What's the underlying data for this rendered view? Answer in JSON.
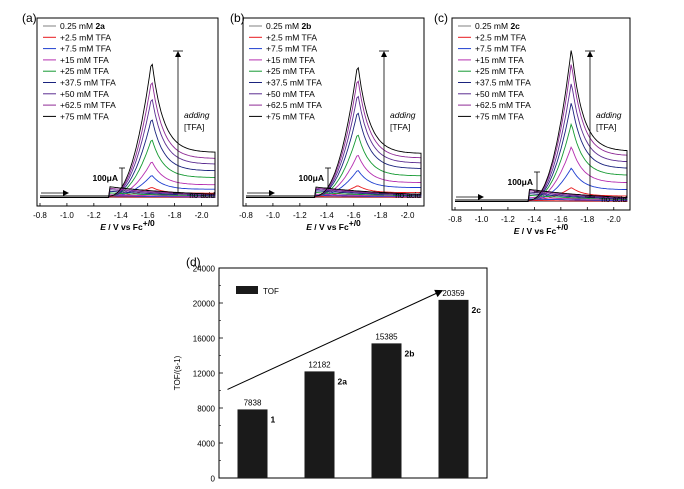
{
  "panel_labels": [
    "(a)",
    "(b)",
    "(c)",
    "(d)"
  ],
  "cv_panels": [
    {
      "label": "(a)",
      "compound": "2a",
      "legend": [
        "0.25 mM 2a",
        "+2.5 mM TFA",
        "+7.5 mM TFA",
        "+15 mM TFA",
        "+25 mM TFA",
        "+37.5 mM TFA",
        "+50 mM TFA",
        "+62.5 mM TFA",
        "+75 mM TFA"
      ],
      "xticks": [
        "-0.8",
        "-1.0",
        "-1.2",
        "-1.4",
        "-1.6",
        "-1.8",
        "-2.0"
      ],
      "xlabel_italic": "E",
      "xlabel_rest": " / V vs Fc",
      "xlabel_sup": "+/0",
      "scalebar": "100μA",
      "adding": "adding",
      "tfa": "[TFA]",
      "no_acid": "no acid"
    },
    {
      "label": "(b)",
      "compound": "2b",
      "legend": [
        "0.25 mM 2b",
        "+2.5 mM TFA",
        "+7.5 mM TFA",
        "+15 mM TFA",
        "+25 mM TFA",
        "+37.5 mM TFA",
        "+50 mM TFA",
        "+62.5 mM TFA",
        "+75 mM TFA"
      ],
      "xticks": [
        "-0.8",
        "-1.0",
        "-1.2",
        "-1.4",
        "-1.6",
        "-1.8",
        "-2.0"
      ],
      "xlabel_italic": "E",
      "xlabel_rest": " / V vs Fc",
      "xlabel_sup": "+/0",
      "scalebar": "100μA",
      "adding": "adding",
      "tfa": "[TFA]",
      "no_acid": "no acid"
    },
    {
      "label": "(c)",
      "compound": "2c",
      "legend": [
        "0.25 mM 2c",
        "+2.5 mM TFA",
        "+7.5 mM TFA",
        "+15 mM TFA",
        "+25 mM TFA",
        "+37.5 mM TFA",
        "+50 mM TFA",
        "+62.5 mM TFA",
        "+75 mM TFA"
      ],
      "xticks": [
        "-0.8",
        "-1.0",
        "-1.2",
        "-1.4",
        "-1.6",
        "-1.8",
        "-2.0"
      ],
      "xlabel_italic": "E",
      "xlabel_rest": " / V vs Fc",
      "xlabel_sup": "+/0",
      "scalebar": "100μA",
      "adding": "adding",
      "tfa": "[TFA]",
      "no_acid": "no acid"
    }
  ],
  "series_colors": [
    "#808080",
    "#e8191c",
    "#1f3fd0",
    "#b52fb0",
    "#159a32",
    "#1a237e",
    "#5b2d91",
    "#8e2b96",
    "#000000"
  ],
  "chart_data": [
    {
      "type": "line",
      "panel": "(a)",
      "xlabel": "E / V vs Fc+/0",
      "x_range": [
        -0.8,
        -2.1
      ],
      "x_axis_reversed": true,
      "y_scale_bar": "100μA",
      "peak_potential_approx": -1.63,
      "series": [
        {
          "name": "0.25 mM 2a",
          "peak_current_uA": 5
        },
        {
          "name": "+2.5 mM TFA",
          "peak_current_uA": 25
        },
        {
          "name": "+7.5 mM TFA",
          "peak_current_uA": 60
        },
        {
          "name": "+15 mM TFA",
          "peak_current_uA": 100
        },
        {
          "name": "+25 mM TFA",
          "peak_current_uA": 165
        },
        {
          "name": "+37.5 mM TFA",
          "peak_current_uA": 225
        },
        {
          "name": "+50 mM TFA",
          "peak_current_uA": 285
        },
        {
          "name": "+62.5 mM TFA",
          "peak_current_uA": 335
        },
        {
          "name": "+75 mM TFA",
          "peak_current_uA": 390
        }
      ]
    },
    {
      "type": "line",
      "panel": "(b)",
      "xlabel": "E / V vs Fc+/0",
      "x_range": [
        -0.8,
        -2.1
      ],
      "x_axis_reversed": true,
      "y_scale_bar": "100μA",
      "peak_potential_approx": -1.63,
      "series": [
        {
          "name": "0.25 mM 2b",
          "peak_current_uA": 5
        },
        {
          "name": "+2.5 mM TFA",
          "peak_current_uA": 30
        },
        {
          "name": "+7.5 mM TFA",
          "peak_current_uA": 75
        },
        {
          "name": "+15 mM TFA",
          "peak_current_uA": 120
        },
        {
          "name": "+25 mM TFA",
          "peak_current_uA": 180
        },
        {
          "name": "+37.5 mM TFA",
          "peak_current_uA": 245
        },
        {
          "name": "+50 mM TFA",
          "peak_current_uA": 295
        },
        {
          "name": "+62.5 mM TFA",
          "peak_current_uA": 340
        },
        {
          "name": "+75 mM TFA",
          "peak_current_uA": 380
        }
      ]
    },
    {
      "type": "line",
      "panel": "(c)",
      "xlabel": "E / V vs Fc+/0",
      "x_range": [
        -0.8,
        -2.1
      ],
      "x_axis_reversed": true,
      "y_scale_bar": "100μA",
      "peak_potential_approx": -1.68,
      "series": [
        {
          "name": "0.25 mM 2c",
          "peak_current_uA": 5
        },
        {
          "name": "+2.5 mM TFA",
          "peak_current_uA": 35
        },
        {
          "name": "+7.5 mM TFA",
          "peak_current_uA": 90
        },
        {
          "name": "+15 mM TFA",
          "peak_current_uA": 150
        },
        {
          "name": "+25 mM TFA",
          "peak_current_uA": 215
        },
        {
          "name": "+37.5 mM TFA",
          "peak_current_uA": 275
        },
        {
          "name": "+50 mM TFA",
          "peak_current_uA": 330
        },
        {
          "name": "+62.5 mM TFA",
          "peak_current_uA": 385
        },
        {
          "name": "+75 mM TFA",
          "peak_current_uA": 425
        }
      ]
    },
    {
      "type": "bar",
      "panel": "(d)",
      "categories": [
        "1",
        "2a",
        "2b",
        "2c"
      ],
      "values": [
        7838,
        12182,
        15385,
        20359
      ],
      "value_labels": [
        "7838",
        "12182",
        "15385",
        "20359"
      ],
      "ylabel": "TOF/(s-1)",
      "legend": "TOF",
      "yticks": [
        "0",
        "4000",
        "8000",
        "12000",
        "16000",
        "20000",
        "24000"
      ],
      "ylim": [
        0,
        24000
      ],
      "trend_arrow": true
    }
  ]
}
